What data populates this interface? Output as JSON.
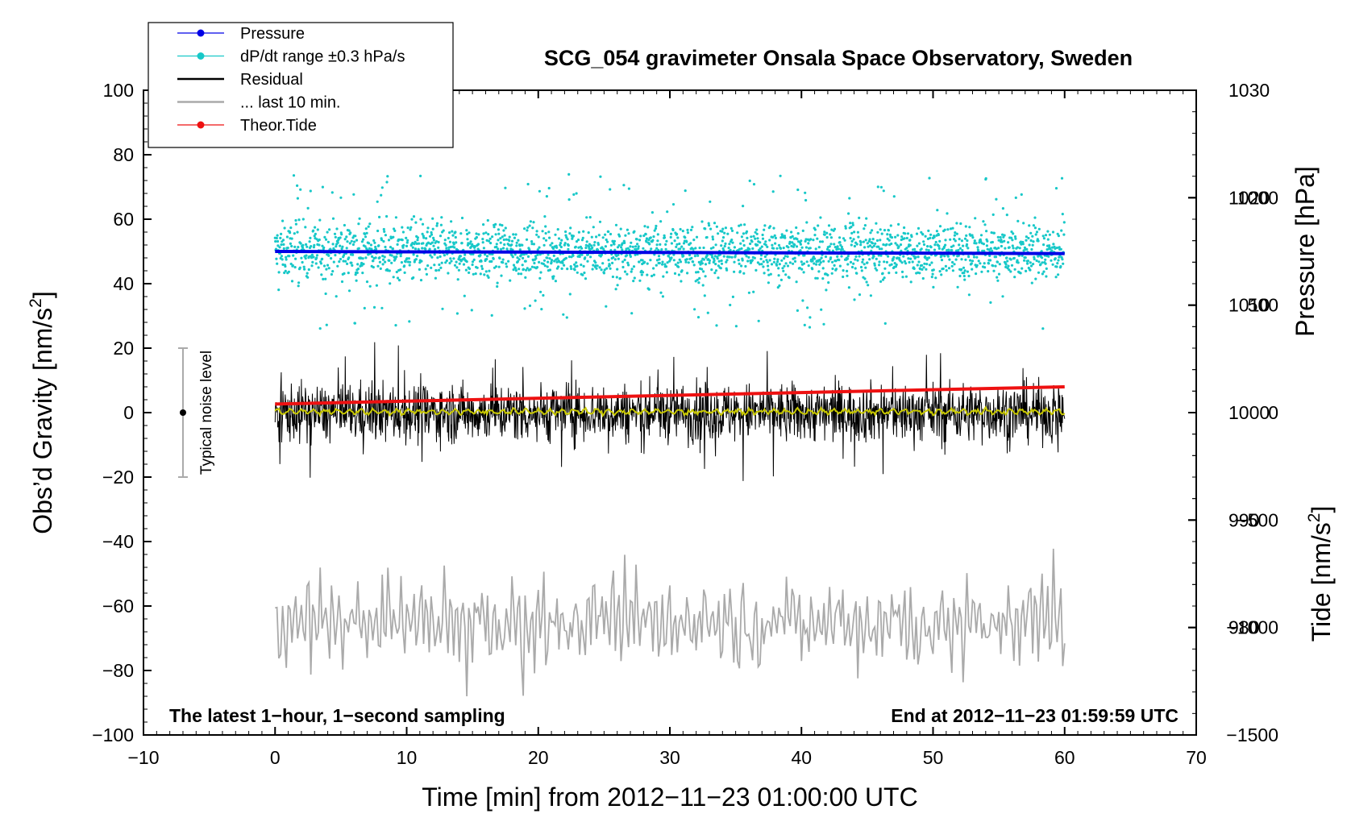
{
  "chart_data": {
    "type": "line",
    "title": "SCG_054 gravimeter Onsala Space Observatory, Sweden",
    "xlabel": "Time [min] from 2012−11−23 01:00:00 UTC",
    "ylabel_left": "Obs’d Gravity [nm/s",
    "ylabel_left_sup": "2",
    "ylabel_left_close": "]",
    "ylabel_right_pressure": "Pressure [hPa]",
    "ylabel_right_tide": "Tide [nm/s",
    "ylabel_right_tide_sup": "2",
    "ylabel_right_tide_close": "]",
    "xlim": [
      -10,
      70
    ],
    "ylim_left": [
      -100,
      100
    ],
    "pressure_ylim": [
      970,
      1030
    ],
    "tide_ylim": [
      -1500,
      1500
    ],
    "x_ticks": [
      "−10",
      "0",
      "10",
      "20",
      "30",
      "40",
      "50",
      "60",
      "70"
    ],
    "x_tick_values": [
      -10,
      0,
      10,
      20,
      30,
      40,
      50,
      60,
      70
    ],
    "y_ticks_left": [
      "100",
      "80",
      "60",
      "40",
      "20",
      "0",
      "−20",
      "−40",
      "−60",
      "−80",
      "−100"
    ],
    "y_tick_values_left": [
      100,
      80,
      60,
      40,
      20,
      0,
      -20,
      -40,
      -60,
      -80,
      -100
    ],
    "pressure_ticks": [
      "1030",
      "1020",
      "1010",
      "1000",
      "990",
      "980"
    ],
    "pressure_tick_values": [
      1030,
      1020,
      1010,
      1000,
      990,
      980
    ],
    "tide_ticks": [
      "1000",
      "500",
      "0",
      "−500",
      "−1000",
      "−1500"
    ],
    "tide_tick_values": [
      1000,
      500,
      0,
      -500,
      -1000,
      -1500
    ],
    "legend": [
      {
        "label": "Pressure",
        "color": "#0000e6",
        "marker": "dot"
      },
      {
        "label": "dP/dt range ±0.3 hPa/s",
        "color": "#17c8c8",
        "marker": "dot"
      },
      {
        "label": "Residual",
        "color": "#000000",
        "marker": "line"
      },
      {
        "label": "... last 10 min.",
        "color": "#aaaaaa",
        "marker": "line"
      },
      {
        "label": "Theor.Tide",
        "color": "#ee1111",
        "marker": "dot"
      }
    ],
    "annotations": {
      "bottom_left": "The latest 1−hour, 1−second sampling",
      "bottom_right": "End at 2012−11−23 01:59:59 UTC",
      "noise_label": "Typical noise level"
    },
    "noise_bar": {
      "x": -7,
      "center": 0,
      "low": -20,
      "high": 20
    },
    "series": [
      {
        "name": "Pressure",
        "axis": "pressure",
        "x_range": [
          0,
          60
        ],
        "start": 1015.0,
        "end": 1014.8,
        "color": "#0000e6"
      },
      {
        "name": "dP/dt range ±0.3 hPa/s",
        "axis": "left",
        "x_range": [
          0,
          60
        ],
        "center": 50,
        "spread": 10,
        "color": "#17c8c8"
      },
      {
        "name": "Residual",
        "axis": "left",
        "x_range": [
          0,
          60
        ],
        "center": 0,
        "spread": 20,
        "min": -28,
        "max": 22,
        "color": "#000000"
      },
      {
        "name": "Residual (smoothed)",
        "axis": "left",
        "x_range": [
          0,
          60
        ],
        "center": 0.5,
        "color": "#c8c800"
      },
      {
        "name": "... last 10 min.",
        "axis": "left",
        "x_range": [
          0,
          60
        ],
        "center": -65,
        "min": -88,
        "max": -39,
        "color": "#aaaaaa"
      },
      {
        "name": "Theor.Tide",
        "axis": "tide",
        "x_range": [
          0,
          60
        ],
        "start": 40,
        "end": 120,
        "color": "#ee1111"
      }
    ],
    "colors": {
      "pressure": "#0000e6",
      "dpdt": "#17c8c8",
      "residual": "#000000",
      "smooth": "#c8c800",
      "last10": "#aaaaaa",
      "tide": "#ee1111",
      "noise_bar": "#aaaaaa"
    }
  }
}
